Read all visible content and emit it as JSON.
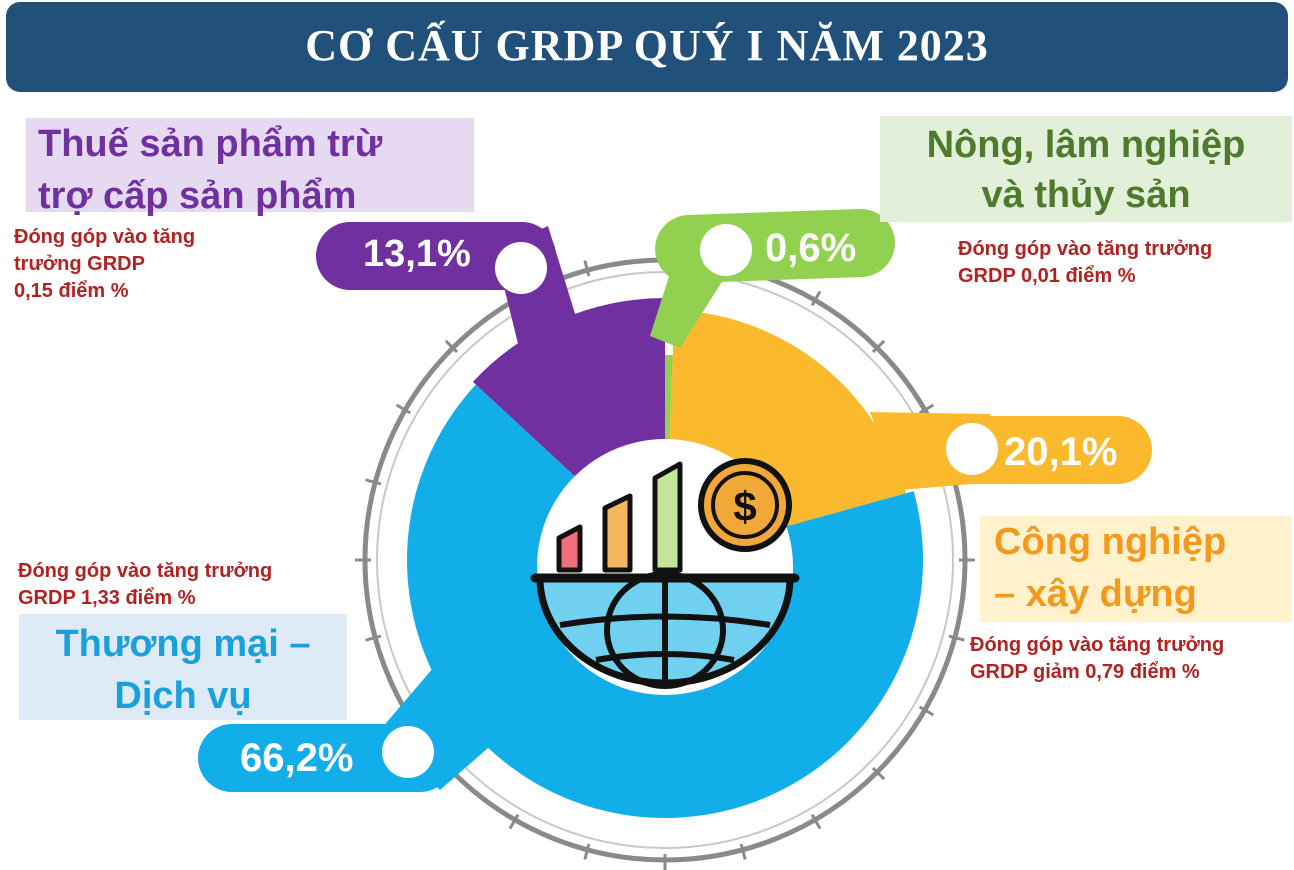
{
  "title": "CƠ CẤU GRDP QUÝ I NĂM 2023",
  "colors": {
    "header": "#21507a",
    "agriculture": "#92d050",
    "industry": "#fbba2e",
    "services": "#12aeea",
    "taxes": "#7030a0",
    "note": "#b22222"
  },
  "icon": "growth-chart-globe-dollar-icon",
  "labels": {
    "taxes": {
      "line1": "Thuế sản phẩm trừ",
      "line2": "trợ cấp sản phẩm",
      "pct": "13,1%",
      "note1": "Đóng góp vào tăng",
      "note2": "trưởng GRDP",
      "note3": "0,15 điểm %"
    },
    "agriculture": {
      "line1": "Nông, lâm nghiệp",
      "line2": "và thủy sản",
      "pct": "0,6%",
      "note1": "Đóng góp vào tăng trưởng",
      "note2": "GRDP 0,01 điểm %"
    },
    "industry": {
      "line1": "Công nghiệp",
      "line2": "– xây dựng",
      "pct": "20,1%",
      "note1": "Đóng góp vào tăng trưởng",
      "note2": "GRDP giảm 0,79 điểm %"
    },
    "services": {
      "line1": "Thương mại –",
      "line2": "Dịch vụ",
      "pct": "66,2%",
      "note1": "Đóng góp vào tăng trưởng",
      "note2": "GRDP 1,33 điểm %"
    }
  },
  "chart_data": {
    "type": "pie",
    "title": "CƠ CẤU GRDP QUÝ I NĂM 2023",
    "categories": [
      "Nông, lâm nghiệp và thủy sản",
      "Công nghiệp – xây dựng",
      "Thương mại – Dịch vụ",
      "Thuế sản phẩm trừ trợ cấp sản phẩm"
    ],
    "values": [
      0.6,
      20.1,
      66.2,
      13.1
    ],
    "colors": [
      "#92d050",
      "#fbba2e",
      "#12aeea",
      "#7030a0"
    ],
    "value_labels": [
      "0,6%",
      "20,1%",
      "66,2%",
      "13,1%"
    ],
    "contributions": [
      "Đóng góp vào tăng trưởng GRDP 0,01 điểm %",
      "Đóng góp vào tăng trưởng GRDP giảm 0,79 điểm %",
      "Đóng góp vào tăng trưởng GRDP 1,33 điểm %",
      "Đóng góp vào tăng trưởng GRDP 0,15 điểm %"
    ]
  }
}
